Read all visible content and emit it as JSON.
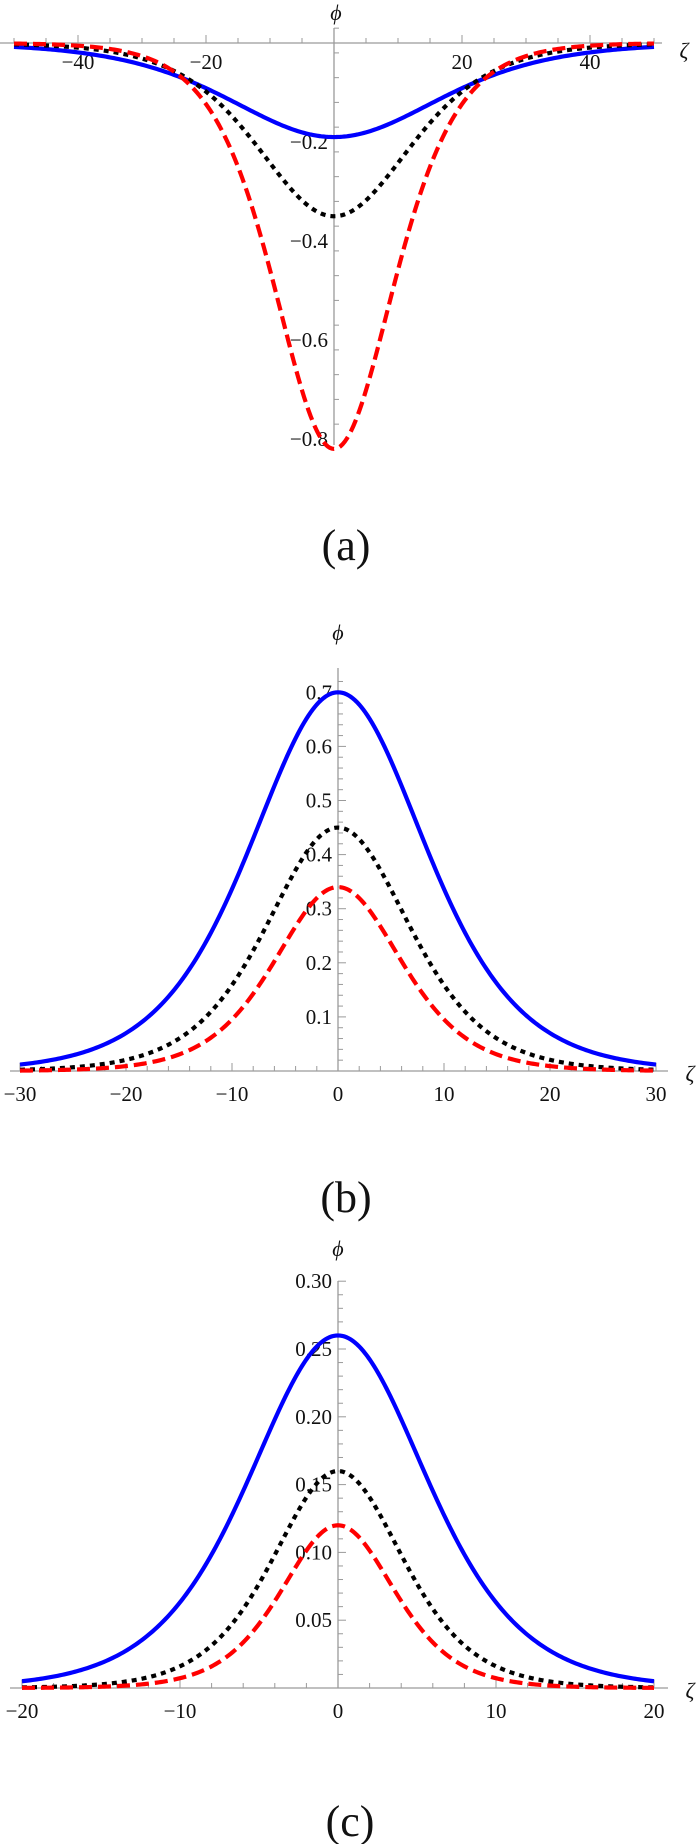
{
  "chart_data": [
    {
      "panel": "(a)",
      "type": "line",
      "title": "",
      "xlabel": "ζ",
      "ylabel": "ϕ",
      "xlim": [
        -50,
        50
      ],
      "ylim": [
        -0.82,
        0
      ],
      "x_ticks": [
        -40,
        -20,
        20,
        40
      ],
      "y_ticks": [
        -0.2,
        -0.4,
        -0.6,
        -0.8
      ],
      "x_tick_labels": [
        "−40",
        "−20",
        "20",
        "40"
      ],
      "y_tick_labels": [
        "−0.2",
        "−0.4",
        "−0.6",
        "−0.8"
      ],
      "grid": false,
      "legend": null,
      "series": [
        {
          "name": "solid-blue",
          "style": "solid",
          "color": "#0000ff",
          "peak": -0.19,
          "width": 22
        },
        {
          "name": "dotted-black",
          "style": "dotted",
          "color": "#000000",
          "peak": -0.35,
          "width": 16
        },
        {
          "name": "dashed-red",
          "style": "dashed",
          "color": "#ff0000",
          "peak": -0.82,
          "width": 12.5
        }
      ],
      "caption": "(a)"
    },
    {
      "panel": "(b)",
      "type": "line",
      "title": "",
      "xlabel": "ζ",
      "ylabel": "ϕ",
      "xlim": [
        -30,
        30
      ],
      "ylim": [
        0,
        0.7
      ],
      "x_ticks": [
        -30,
        -20,
        -10,
        0,
        10,
        20,
        30
      ],
      "y_ticks": [
        0.1,
        0.2,
        0.3,
        0.4,
        0.5,
        0.6,
        0.7
      ],
      "x_tick_labels": [
        "−30",
        "−20",
        "−10",
        "0",
        "10",
        "20",
        "30"
      ],
      "y_tick_labels": [
        "0.1",
        "0.2",
        "0.3",
        "0.4",
        "0.5",
        "0.6",
        "0.7"
      ],
      "grid": false,
      "legend": null,
      "series": [
        {
          "name": "solid-blue",
          "style": "solid",
          "color": "#0000ff",
          "peak": 0.7,
          "width": 11
        },
        {
          "name": "dotted-black",
          "style": "dotted",
          "color": "#000000",
          "peak": 0.45,
          "width": 9
        },
        {
          "name": "dashed-red",
          "style": "dashed",
          "color": "#ff0000",
          "peak": 0.34,
          "width": 8
        }
      ],
      "caption": "(b)"
    },
    {
      "panel": "(c)",
      "type": "line",
      "title": "",
      "xlabel": "ζ",
      "ylabel": "ϕ",
      "xlim": [
        -20,
        20
      ],
      "ylim": [
        0,
        0.3
      ],
      "x_ticks": [
        -20,
        -10,
        0,
        10,
        20
      ],
      "y_ticks": [
        0.05,
        0.1,
        0.15,
        0.2,
        0.25,
        0.3
      ],
      "x_tick_labels": [
        "−20",
        "−10",
        "0",
        "10",
        "20"
      ],
      "y_tick_labels": [
        "0.05",
        "0.10",
        "0.15",
        "0.20",
        "0.25",
        "0.30"
      ],
      "grid": false,
      "legend": null,
      "series": [
        {
          "name": "solid-blue",
          "style": "solid",
          "color": "#0000ff",
          "peak": 0.26,
          "width": 7.5
        },
        {
          "name": "dotted-black",
          "style": "dotted",
          "color": "#000000",
          "peak": 0.16,
          "width": 5.5
        },
        {
          "name": "dashed-red",
          "style": "dashed",
          "color": "#ff0000",
          "peak": 0.12,
          "width": 4.8
        }
      ],
      "caption": "(c)"
    }
  ],
  "labels": {
    "phi": "ϕ",
    "zeta": "ζ",
    "caption_a": "(a)",
    "caption_b": "(b)",
    "caption_c": "(c)"
  }
}
